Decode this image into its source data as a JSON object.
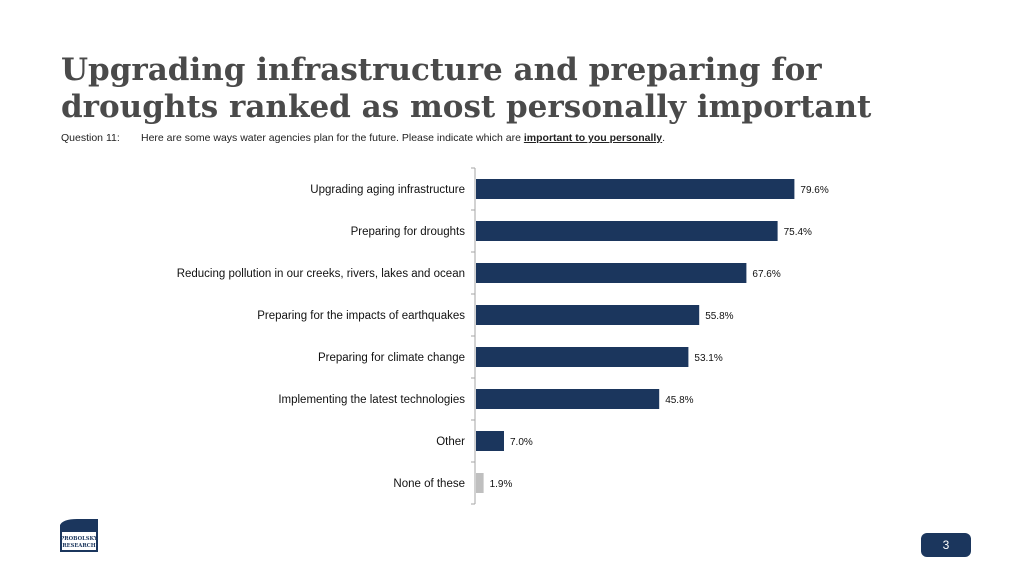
{
  "title": "Upgrading infrastructure and preparing for droughts ranked as most personally important",
  "question": {
    "number_label": "Question 11:",
    "text_before": "Here are some ways water agencies plan for the future. Please indicate which are ",
    "emphasis": "important to you personally",
    "text_after": "."
  },
  "chart_data": {
    "type": "bar",
    "orientation": "horizontal",
    "categories": [
      "Upgrading aging infrastructure",
      "Preparing for droughts",
      "Reducing pollution in our creeks, rivers, lakes and ocean",
      "Preparing for the impacts of earthquakes",
      "Preparing for climate change",
      "Implementing the latest technologies",
      "Other",
      "None of these"
    ],
    "values": [
      79.6,
      75.4,
      67.6,
      55.8,
      53.1,
      45.8,
      7.0,
      1.9
    ],
    "data_labels": [
      "79.6%",
      "75.4%",
      "67.6%",
      "55.8%",
      "53.1%",
      "45.8%",
      "7.0%",
      "1.9%"
    ],
    "bar_colors": [
      "#1b365d",
      "#1b365d",
      "#1b365d",
      "#1b365d",
      "#1b365d",
      "#1b365d",
      "#1b365d",
      "#bfbfbf"
    ],
    "xlim": [
      0,
      100
    ],
    "grid": false,
    "legend": "none"
  },
  "logo": {
    "line1": "PROBOLSKY",
    "line2": "RESEARCH"
  },
  "page_number": "3",
  "colors": {
    "title": "#4a4a4a",
    "bar": "#1b365d",
    "bar_muted": "#bfbfbf",
    "badge": "#1b365d"
  }
}
